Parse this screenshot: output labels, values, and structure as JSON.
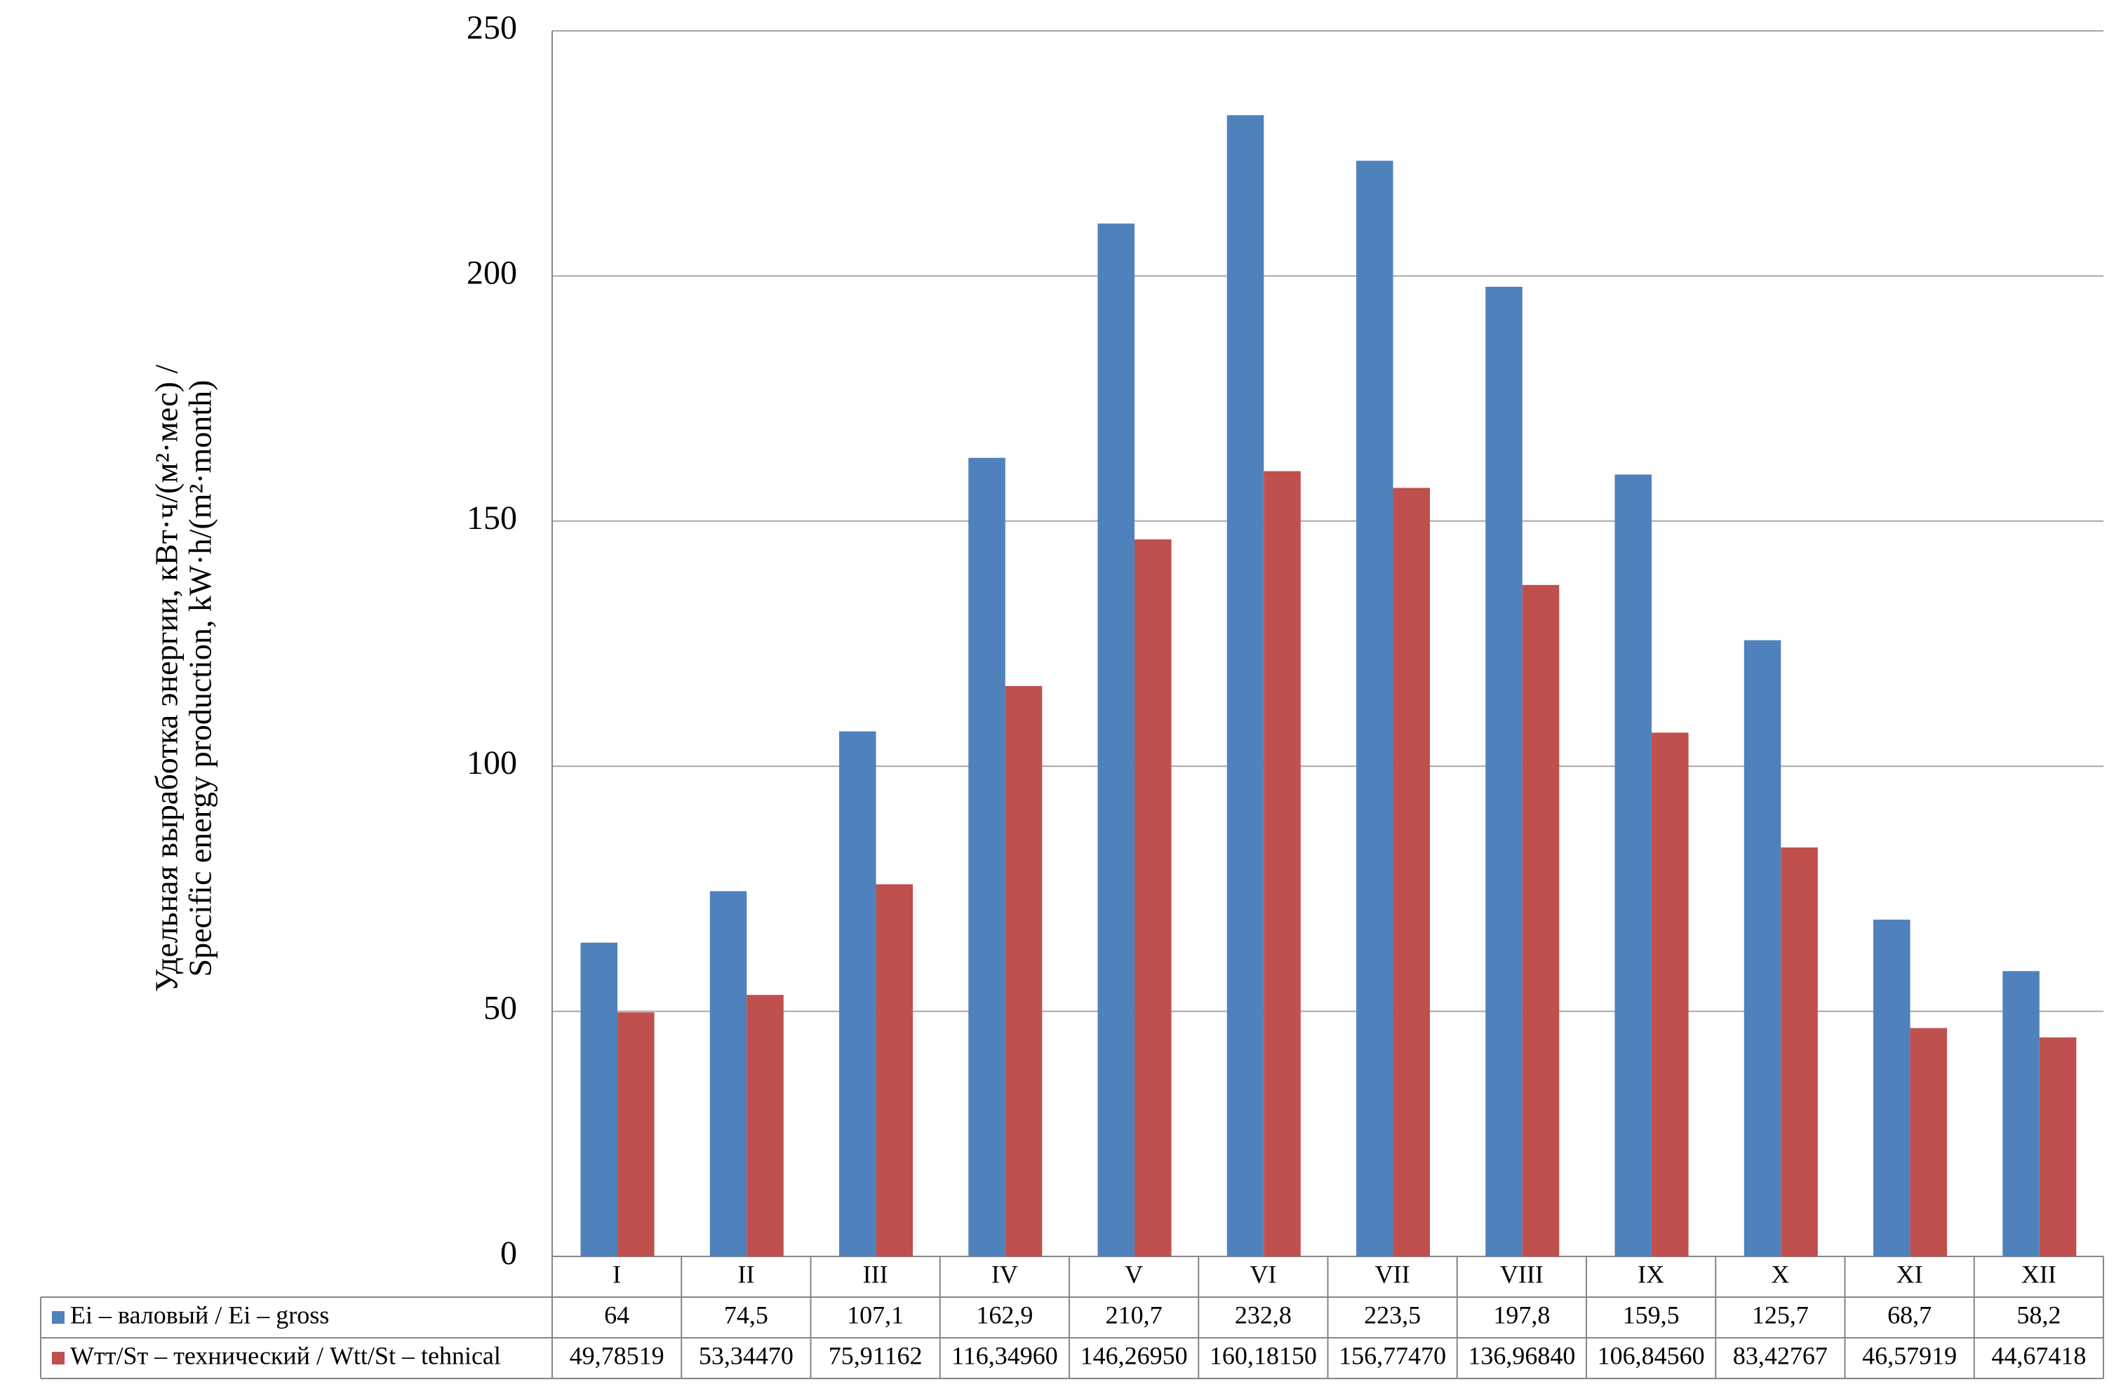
{
  "chart_data": {
    "type": "bar",
    "ylabel": [
      "Удельная выработка энергии, кВт·ч/(м²·мес) /",
      "Specific energy production, kW·h/(m²·month)"
    ],
    "categories": [
      "I",
      "II",
      "III",
      "IV",
      "V",
      "VI",
      "VII",
      "VIII",
      "IX",
      "X",
      "XI",
      "XII"
    ],
    "series": [
      {
        "name": "Ei – валовый / Ei – gross",
        "color": "#4f81bd",
        "values": [
          64,
          74.5,
          107.1,
          162.9,
          210.7,
          232.8,
          223.5,
          197.8,
          159.5,
          125.7,
          68.7,
          58.2
        ],
        "value_labels": [
          "64",
          "74,5",
          "107,1",
          "162,9",
          "210,7",
          "232,8",
          "223,5",
          "197,8",
          "159,5",
          "125,7",
          "68,7",
          "58,2"
        ]
      },
      {
        "name": "Wтт/Sт – технический / Wtt/St – tehnical",
        "color": "#c0504d",
        "values": [
          49.78519,
          53.3447,
          75.91162,
          116.3496,
          146.2695,
          160.1815,
          156.7747,
          136.9684,
          106.8456,
          83.42767,
          46.57919,
          44.67418
        ],
        "value_labels": [
          "49,78519",
          "53,34470",
          "75,91162",
          "116,34960",
          "146,26950",
          "160,18150",
          "156,77470",
          "136,96840",
          "106,84560",
          "83,42767",
          "46,57919",
          "44,67418"
        ]
      }
    ],
    "ylim": [
      0,
      250
    ],
    "yticks": [
      0,
      50,
      100,
      150,
      200,
      250
    ],
    "grid": true
  }
}
